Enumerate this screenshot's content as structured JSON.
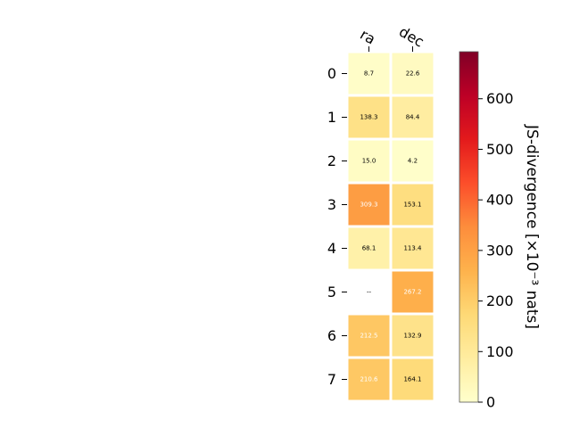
{
  "chart_data": {
    "type": "heatmap",
    "columns": [
      "ra",
      "dec"
    ],
    "rows": [
      "0",
      "1",
      "2",
      "3",
      "4",
      "5",
      "6",
      "7"
    ],
    "values": [
      [
        8.7,
        22.6
      ],
      [
        138.3,
        84.4
      ],
      [
        15.0,
        4.2
      ],
      [
        309.3,
        153.1
      ],
      [
        68.1,
        113.4
      ],
      [
        null,
        267.2
      ],
      [
        212.5,
        132.9
      ],
      [
        210.6,
        164.1
      ]
    ],
    "cell_labels": [
      [
        "8.7",
        "22.6"
      ],
      [
        "138.3",
        "84.4"
      ],
      [
        "15.0",
        "4.2"
      ],
      [
        "309.3",
        "153.1"
      ],
      [
        "68.1",
        "113.4"
      ],
      [
        "--",
        "267.2"
      ],
      [
        "212.5",
        "132.9"
      ],
      [
        "210.6",
        "164.1"
      ]
    ],
    "colorbar": {
      "label": "JS-divergence [×10⁻³ nats]",
      "ticks": [
        0,
        100,
        200,
        300,
        400,
        500,
        600
      ],
      "range": [
        0,
        693
      ],
      "colormap": "YlOrRd"
    }
  }
}
